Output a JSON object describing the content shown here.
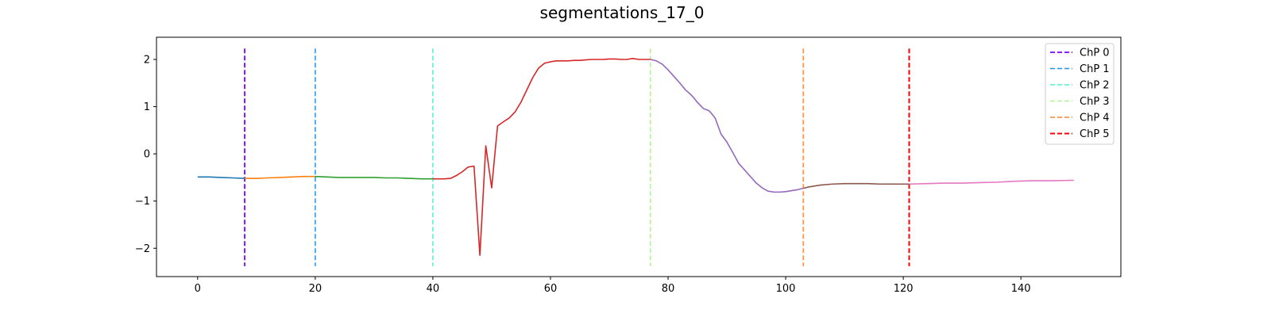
{
  "chart_data": {
    "type": "line",
    "title": "segmentations_17_0",
    "xlim": [
      -7,
      157
    ],
    "ylim": [
      -2.6,
      2.47
    ],
    "xticks": [
      0,
      20,
      40,
      60,
      80,
      100,
      120,
      140
    ],
    "yticks": [
      -2,
      -1,
      0,
      1,
      2
    ],
    "ytick_labels": [
      "−2",
      "−1",
      "0",
      "1",
      "2"
    ],
    "segment_colors": [
      "#1f77b4",
      "#ff7f0e",
      "#2ca02c",
      "#d62728",
      "#9467bd",
      "#8c564b",
      "#e377c2"
    ],
    "segments": [
      {
        "x": [
          0,
          2,
          4,
          6,
          8
        ],
        "y": [
          -0.49,
          -0.49,
          -0.5,
          -0.51,
          -0.52
        ]
      },
      {
        "x": [
          8,
          10,
          12,
          14,
          16,
          18,
          20
        ],
        "y": [
          -0.52,
          -0.52,
          -0.51,
          -0.5,
          -0.49,
          -0.48,
          -0.48
        ]
      },
      {
        "x": [
          20,
          22,
          24,
          26,
          28,
          30,
          32,
          34,
          36,
          38,
          40
        ],
        "y": [
          -0.48,
          -0.49,
          -0.5,
          -0.5,
          -0.5,
          -0.5,
          -0.51,
          -0.51,
          -0.52,
          -0.53,
          -0.53
        ]
      },
      {
        "x": [
          40,
          41,
          42,
          43,
          44,
          45,
          46,
          47,
          48,
          49,
          50,
          51,
          52,
          53,
          54,
          55,
          56,
          57,
          58,
          59,
          60,
          61,
          62,
          63,
          64,
          65,
          66,
          67,
          68,
          69,
          70,
          71,
          72,
          73,
          74,
          75,
          76,
          77
        ],
        "y": [
          -0.53,
          -0.53,
          -0.53,
          -0.52,
          -0.46,
          -0.38,
          -0.28,
          -0.26,
          -2.15,
          0.17,
          -0.72,
          0.59,
          0.68,
          0.76,
          0.89,
          1.1,
          1.36,
          1.62,
          1.82,
          1.92,
          1.95,
          1.97,
          1.97,
          1.97,
          1.98,
          1.98,
          1.99,
          2.0,
          2.0,
          2.0,
          2.01,
          2.01,
          2.0,
          2.0,
          2.02,
          2.0,
          2.0,
          2.0
        ]
      },
      {
        "x": [
          77,
          78,
          79,
          80,
          81,
          82,
          83,
          84,
          85,
          86,
          87,
          88,
          89,
          90,
          91,
          92,
          93,
          94,
          95,
          96,
          97,
          98,
          99,
          100,
          101,
          102,
          103
        ],
        "y": [
          2.0,
          1.97,
          1.9,
          1.78,
          1.64,
          1.5,
          1.35,
          1.24,
          1.09,
          0.96,
          0.91,
          0.76,
          0.42,
          0.25,
          0.03,
          -0.2,
          -0.34,
          -0.48,
          -0.62,
          -0.72,
          -0.79,
          -0.81,
          -0.81,
          -0.8,
          -0.78,
          -0.76,
          -0.73
        ]
      },
      {
        "x": [
          103,
          104,
          106,
          108,
          110,
          112,
          114,
          116,
          118,
          120,
          121
        ],
        "y": [
          -0.73,
          -0.7,
          -0.66,
          -0.64,
          -0.63,
          -0.63,
          -0.63,
          -0.64,
          -0.64,
          -0.64,
          -0.64
        ]
      },
      {
        "x": [
          121,
          124,
          127,
          130,
          133,
          136,
          139,
          142,
          145,
          149
        ],
        "y": [
          -0.64,
          -0.63,
          -0.62,
          -0.62,
          -0.61,
          -0.6,
          -0.58,
          -0.57,
          -0.57,
          -0.56
        ]
      }
    ],
    "changepoints": [
      {
        "name": "ChP 0",
        "x": 8,
        "color": "#7f00ff",
        "dash": "6,3",
        "width": 1.8
      },
      {
        "name": "ChP 1",
        "x": 20,
        "color": "#1996f3",
        "dash": "6,3",
        "width": 1.5
      },
      {
        "name": "ChP 2",
        "x": 40,
        "color": "#4df3ce",
        "dash": "6,3",
        "width": 1.5
      },
      {
        "name": "ChP 3",
        "x": 77,
        "color": "#b2f396",
        "dash": "6,3",
        "width": 1.5
      },
      {
        "name": "ChP 4",
        "x": 103,
        "color": "#ff964f",
        "dash": "6,3",
        "width": 1.8
      },
      {
        "name": "ChP 5",
        "x": 121,
        "color": "#ff0000",
        "dash": "6,3",
        "width": 2
      }
    ],
    "legend_position": "top-right"
  }
}
